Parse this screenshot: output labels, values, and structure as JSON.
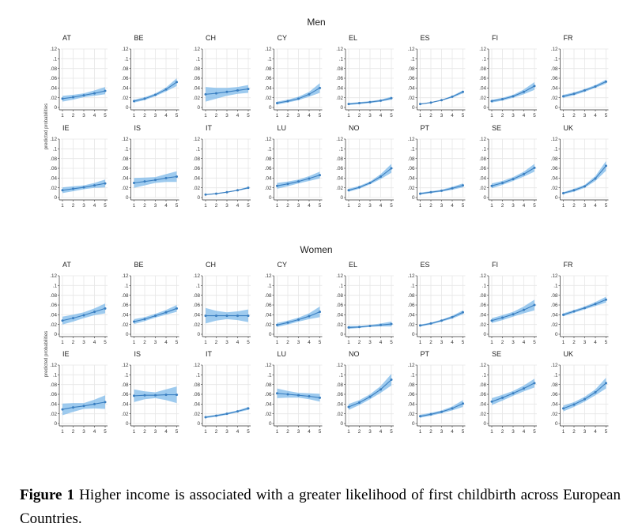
{
  "figure": {
    "panels": [
      {
        "title": "Men",
        "ylabel": "predicted probabilities"
      },
      {
        "title": "Women",
        "ylabel": "predicted probabilities"
      }
    ],
    "caption_label": "Figure 1",
    "caption_text": " Higher income is associated with a greater likelihood of first childbirth across European Countries."
  },
  "style": {
    "line_color": "#3a7fc1",
    "band_color": "#7db9ea",
    "grid_color": "#e6e6e6"
  },
  "chart_data": [
    {
      "type": "line",
      "panel": "Men",
      "x": [
        1,
        2,
        3,
        4,
        5
      ],
      "ylim": [
        0,
        0.12
      ],
      "yticks": [
        0,
        0.02,
        0.04,
        0.06,
        0.08,
        0.1,
        0.12
      ],
      "ytick_labels": [
        "0",
        ".02",
        ".04",
        ".06",
        ".08",
        ".1",
        ".12"
      ],
      "series": [
        {
          "name": "AT",
          "values": [
            0.018,
            0.021,
            0.025,
            0.029,
            0.034
          ],
          "ci_low": [
            0.012,
            0.016,
            0.021,
            0.024,
            0.027
          ],
          "ci_high": [
            0.024,
            0.026,
            0.029,
            0.035,
            0.042
          ]
        },
        {
          "name": "BE",
          "values": [
            0.013,
            0.018,
            0.026,
            0.037,
            0.052
          ],
          "ci_low": [
            0.01,
            0.015,
            0.023,
            0.033,
            0.044
          ],
          "ci_high": [
            0.016,
            0.021,
            0.029,
            0.041,
            0.06
          ]
        },
        {
          "name": "CH",
          "values": [
            0.027,
            0.029,
            0.032,
            0.035,
            0.038
          ],
          "ci_low": [
            0.012,
            0.018,
            0.024,
            0.028,
            0.03
          ],
          "ci_high": [
            0.042,
            0.04,
            0.04,
            0.042,
            0.046
          ]
        },
        {
          "name": "CY",
          "values": [
            0.009,
            0.013,
            0.018,
            0.027,
            0.04
          ],
          "ci_low": [
            0.006,
            0.01,
            0.015,
            0.022,
            0.03
          ],
          "ci_high": [
            0.012,
            0.016,
            0.022,
            0.032,
            0.05
          ]
        },
        {
          "name": "EL",
          "values": [
            0.007,
            0.009,
            0.011,
            0.014,
            0.019
          ],
          "ci_low": [
            0.005,
            0.007,
            0.009,
            0.012,
            0.016
          ],
          "ci_high": [
            0.009,
            0.011,
            0.013,
            0.016,
            0.022
          ]
        },
        {
          "name": "ES",
          "values": [
            0.007,
            0.01,
            0.015,
            0.022,
            0.032
          ],
          "ci_low": [
            0.006,
            0.009,
            0.014,
            0.02,
            0.029
          ],
          "ci_high": [
            0.008,
            0.011,
            0.016,
            0.024,
            0.035
          ]
        },
        {
          "name": "FI",
          "values": [
            0.013,
            0.017,
            0.023,
            0.032,
            0.044
          ],
          "ci_low": [
            0.01,
            0.014,
            0.02,
            0.027,
            0.036
          ],
          "ci_high": [
            0.016,
            0.02,
            0.026,
            0.037,
            0.052
          ]
        },
        {
          "name": "FR",
          "values": [
            0.023,
            0.028,
            0.035,
            0.043,
            0.053
          ],
          "ci_low": [
            0.02,
            0.025,
            0.032,
            0.04,
            0.049
          ],
          "ci_high": [
            0.026,
            0.031,
            0.038,
            0.046,
            0.057
          ]
        }
      ]
    },
    {
      "type": "line",
      "panel": "Men",
      "x": [
        1,
        2,
        3,
        4,
        5
      ],
      "ylim": [
        0,
        0.12
      ],
      "yticks": [
        0,
        0.02,
        0.04,
        0.06,
        0.08,
        0.1,
        0.12
      ],
      "ytick_labels": [
        "0",
        ".02",
        ".04",
        ".06",
        ".08",
        ".1",
        ".12"
      ],
      "series": [
        {
          "name": "IE",
          "values": [
            0.015,
            0.018,
            0.021,
            0.025,
            0.029
          ],
          "ci_low": [
            0.009,
            0.013,
            0.017,
            0.02,
            0.021
          ],
          "ci_high": [
            0.021,
            0.023,
            0.025,
            0.03,
            0.037
          ]
        },
        {
          "name": "IS",
          "values": [
            0.03,
            0.033,
            0.036,
            0.04,
            0.043
          ],
          "ci_low": [
            0.02,
            0.025,
            0.03,
            0.032,
            0.032
          ],
          "ci_high": [
            0.04,
            0.041,
            0.042,
            0.048,
            0.054
          ]
        },
        {
          "name": "IT",
          "values": [
            0.006,
            0.008,
            0.011,
            0.015,
            0.02
          ],
          "ci_low": [
            0.005,
            0.007,
            0.01,
            0.014,
            0.018
          ],
          "ci_high": [
            0.007,
            0.009,
            0.012,
            0.016,
            0.022
          ]
        },
        {
          "name": "LU",
          "values": [
            0.024,
            0.028,
            0.033,
            0.039,
            0.046
          ],
          "ci_low": [
            0.018,
            0.023,
            0.029,
            0.034,
            0.039
          ],
          "ci_high": [
            0.03,
            0.033,
            0.037,
            0.044,
            0.053
          ]
        },
        {
          "name": "NO",
          "values": [
            0.015,
            0.021,
            0.03,
            0.043,
            0.06
          ],
          "ci_low": [
            0.012,
            0.018,
            0.027,
            0.038,
            0.051
          ],
          "ci_high": [
            0.018,
            0.024,
            0.033,
            0.048,
            0.069
          ]
        },
        {
          "name": "PT",
          "values": [
            0.008,
            0.011,
            0.014,
            0.019,
            0.025
          ],
          "ci_low": [
            0.006,
            0.009,
            0.012,
            0.016,
            0.021
          ],
          "ci_high": [
            0.01,
            0.013,
            0.016,
            0.022,
            0.029
          ]
        },
        {
          "name": "SE",
          "values": [
            0.024,
            0.03,
            0.038,
            0.048,
            0.061
          ],
          "ci_low": [
            0.019,
            0.026,
            0.034,
            0.043,
            0.053
          ],
          "ci_high": [
            0.029,
            0.034,
            0.042,
            0.053,
            0.069
          ]
        },
        {
          "name": "UK",
          "values": [
            0.009,
            0.015,
            0.023,
            0.039,
            0.065
          ],
          "ci_low": [
            0.007,
            0.012,
            0.02,
            0.034,
            0.055
          ],
          "ci_high": [
            0.011,
            0.018,
            0.026,
            0.044,
            0.075
          ]
        }
      ]
    },
    {
      "type": "line",
      "panel": "Women",
      "x": [
        1,
        2,
        3,
        4,
        5
      ],
      "ylim": [
        0,
        0.12
      ],
      "yticks": [
        0,
        0.02,
        0.04,
        0.06,
        0.08,
        0.1,
        0.12
      ],
      "ytick_labels": [
        "0",
        ".02",
        ".04",
        ".06",
        ".08",
        ".1",
        ".12"
      ],
      "series": [
        {
          "name": "AT",
          "values": [
            0.028,
            0.033,
            0.039,
            0.046,
            0.053
          ],
          "ci_low": [
            0.02,
            0.026,
            0.033,
            0.039,
            0.043
          ],
          "ci_high": [
            0.036,
            0.04,
            0.045,
            0.053,
            0.063
          ]
        },
        {
          "name": "BE",
          "values": [
            0.026,
            0.031,
            0.038,
            0.045,
            0.053
          ],
          "ci_low": [
            0.021,
            0.027,
            0.034,
            0.04,
            0.046
          ],
          "ci_high": [
            0.031,
            0.035,
            0.042,
            0.05,
            0.06
          ]
        },
        {
          "name": "CH",
          "values": [
            0.038,
            0.038,
            0.038,
            0.038,
            0.038
          ],
          "ci_low": [
            0.022,
            0.028,
            0.031,
            0.029,
            0.025
          ],
          "ci_high": [
            0.054,
            0.048,
            0.045,
            0.047,
            0.051
          ]
        },
        {
          "name": "CY",
          "values": [
            0.019,
            0.024,
            0.03,
            0.037,
            0.046
          ],
          "ci_low": [
            0.015,
            0.02,
            0.026,
            0.031,
            0.035
          ],
          "ci_high": [
            0.023,
            0.028,
            0.034,
            0.043,
            0.057
          ]
        },
        {
          "name": "EL",
          "values": [
            0.014,
            0.015,
            0.017,
            0.019,
            0.021
          ],
          "ci_low": [
            0.011,
            0.013,
            0.015,
            0.016,
            0.016
          ],
          "ci_high": [
            0.017,
            0.017,
            0.019,
            0.022,
            0.026
          ]
        },
        {
          "name": "ES",
          "values": [
            0.018,
            0.022,
            0.028,
            0.035,
            0.045
          ],
          "ci_low": [
            0.016,
            0.02,
            0.026,
            0.032,
            0.041
          ],
          "ci_high": [
            0.02,
            0.024,
            0.03,
            0.038,
            0.049
          ]
        },
        {
          "name": "FI",
          "values": [
            0.028,
            0.034,
            0.041,
            0.05,
            0.06
          ],
          "ci_low": [
            0.023,
            0.029,
            0.036,
            0.043,
            0.049
          ],
          "ci_high": [
            0.033,
            0.039,
            0.046,
            0.057,
            0.071
          ]
        },
        {
          "name": "FR",
          "values": [
            0.04,
            0.047,
            0.054,
            0.062,
            0.071
          ],
          "ci_low": [
            0.037,
            0.044,
            0.051,
            0.058,
            0.065
          ],
          "ci_high": [
            0.043,
            0.05,
            0.057,
            0.066,
            0.077
          ]
        }
      ]
    },
    {
      "type": "line",
      "panel": "Women",
      "x": [
        1,
        2,
        3,
        4,
        5
      ],
      "ylim": [
        0,
        0.12
      ],
      "yticks": [
        0,
        0.02,
        0.04,
        0.06,
        0.08,
        0.1,
        0.12
      ],
      "ytick_labels": [
        "0",
        ".02",
        ".04",
        ".06",
        ".08",
        ".1",
        ".12"
      ],
      "series": [
        {
          "name": "IE",
          "values": [
            0.029,
            0.033,
            0.036,
            0.04,
            0.044
          ],
          "ci_low": [
            0.017,
            0.024,
            0.03,
            0.031,
            0.03
          ],
          "ci_high": [
            0.041,
            0.042,
            0.042,
            0.049,
            0.058
          ]
        },
        {
          "name": "IS",
          "values": [
            0.057,
            0.058,
            0.058,
            0.059,
            0.059
          ],
          "ci_low": [
            0.044,
            0.05,
            0.052,
            0.048,
            0.042
          ],
          "ci_high": [
            0.07,
            0.066,
            0.064,
            0.07,
            0.076
          ]
        },
        {
          "name": "IT",
          "values": [
            0.013,
            0.016,
            0.02,
            0.025,
            0.031
          ],
          "ci_low": [
            0.011,
            0.014,
            0.018,
            0.023,
            0.028
          ],
          "ci_high": [
            0.015,
            0.018,
            0.022,
            0.027,
            0.034
          ]
        },
        {
          "name": "LU",
          "values": [
            0.062,
            0.06,
            0.058,
            0.056,
            0.053
          ],
          "ci_low": [
            0.052,
            0.053,
            0.053,
            0.05,
            0.045
          ],
          "ci_high": [
            0.072,
            0.067,
            0.063,
            0.062,
            0.061
          ]
        },
        {
          "name": "NO",
          "values": [
            0.034,
            0.043,
            0.055,
            0.07,
            0.09
          ],
          "ci_low": [
            0.028,
            0.038,
            0.05,
            0.063,
            0.078
          ],
          "ci_high": [
            0.04,
            0.048,
            0.06,
            0.077,
            0.102
          ]
        },
        {
          "name": "PT",
          "values": [
            0.015,
            0.019,
            0.024,
            0.031,
            0.041
          ],
          "ci_low": [
            0.012,
            0.016,
            0.021,
            0.027,
            0.034
          ],
          "ci_high": [
            0.018,
            0.022,
            0.027,
            0.035,
            0.048
          ]
        },
        {
          "name": "SE",
          "values": [
            0.045,
            0.053,
            0.062,
            0.072,
            0.083
          ],
          "ci_low": [
            0.038,
            0.047,
            0.057,
            0.066,
            0.074
          ],
          "ci_high": [
            0.052,
            0.059,
            0.067,
            0.078,
            0.092
          ]
        },
        {
          "name": "UK",
          "values": [
            0.031,
            0.039,
            0.05,
            0.064,
            0.083
          ],
          "ci_low": [
            0.025,
            0.034,
            0.045,
            0.058,
            0.072
          ],
          "ci_high": [
            0.037,
            0.044,
            0.055,
            0.07,
            0.094
          ]
        }
      ]
    }
  ]
}
